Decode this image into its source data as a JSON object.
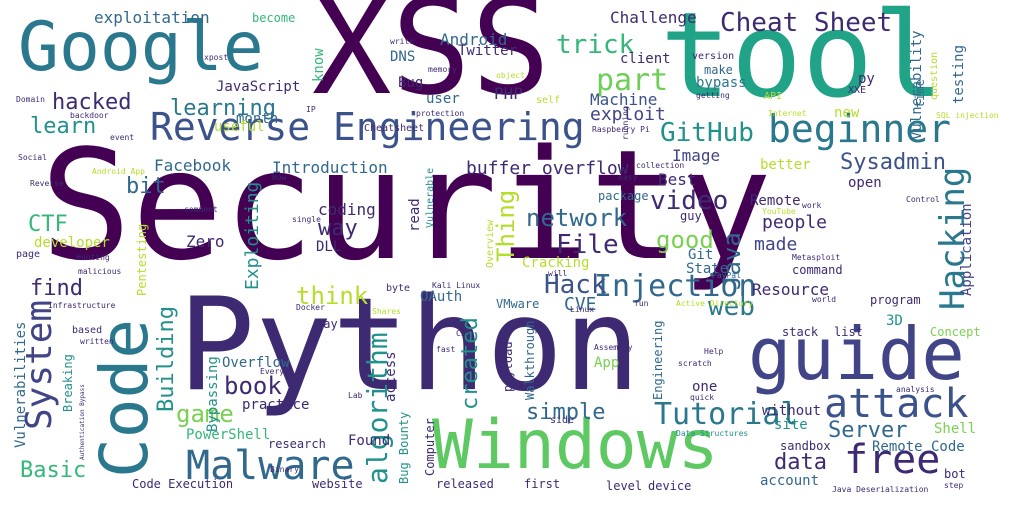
{
  "words": [
    {
      "text": "Security",
      "color": "#440154"
    },
    {
      "text": "Python",
      "color": "#3e2a72"
    },
    {
      "text": "XSS",
      "color": "#440154"
    },
    {
      "text": "tool",
      "color": "#20a386"
    },
    {
      "text": "Google",
      "color": "#2a788e"
    },
    {
      "text": "Windows",
      "color": "#5ec962"
    },
    {
      "text": "guide",
      "color": "#414487"
    },
    {
      "text": "Code",
      "color": "#2a788e"
    },
    {
      "text": "Reverse Engineering",
      "color": "#3b528b"
    },
    {
      "text": "beginner",
      "color": "#2a788e"
    },
    {
      "text": "attack",
      "color": "#3b528b"
    },
    {
      "text": "Malware",
      "color": "#31688e"
    },
    {
      "text": "free",
      "color": "#3e2a72"
    },
    {
      "text": "Hacking",
      "color": "#2a788e"
    },
    {
      "text": "System",
      "color": "#414487"
    },
    {
      "text": "Injection",
      "color": "#31688e"
    },
    {
      "text": "Tutorial",
      "color": "#2a788e"
    },
    {
      "text": "algorithm",
      "color": "#21918c"
    },
    {
      "text": "Cheat Sheet",
      "color": "#3e2a72"
    },
    {
      "text": "GitHub",
      "color": "#21918c"
    },
    {
      "text": "trick",
      "color": "#35b779"
    },
    {
      "text": "part",
      "color": "#6ece58"
    },
    {
      "text": "hacked",
      "color": "#3e2a72"
    },
    {
      "text": "learning",
      "color": "#2a788e"
    },
    {
      "text": "learn",
      "color": "#21918c"
    },
    {
      "text": "web",
      "color": "#2a788e"
    },
    {
      "text": "video",
      "color": "#3e2a72"
    },
    {
      "text": "network",
      "color": "#31688e"
    },
    {
      "text": "File",
      "color": "#3e2a72"
    },
    {
      "text": "Hack",
      "color": "#3b528b"
    },
    {
      "text": "good",
      "color": "#7ad151"
    },
    {
      "text": "Java",
      "color": "#31688e"
    },
    {
      "text": "think",
      "color": "#b5de2b"
    },
    {
      "text": "Thing",
      "color": "#b5de2b"
    },
    {
      "text": "created",
      "color": "#21918c"
    },
    {
      "text": "Building",
      "color": "#21918c"
    },
    {
      "text": "book",
      "color": "#3e2a72"
    },
    {
      "text": "game",
      "color": "#7ad151"
    },
    {
      "text": "Server",
      "color": "#31688e"
    },
    {
      "text": "simple",
      "color": "#31688e"
    },
    {
      "text": "data",
      "color": "#3e2a72"
    },
    {
      "text": "Basic",
      "color": "#35b779"
    },
    {
      "text": "CTF",
      "color": "#35b779"
    },
    {
      "text": "bit",
      "color": "#31688e"
    },
    {
      "text": "way",
      "color": "#3e2a72"
    },
    {
      "text": "find",
      "color": "#3e2a72"
    },
    {
      "text": "CVE",
      "color": "#31688e"
    },
    {
      "text": "Sysadmin",
      "color": "#3b528b"
    },
    {
      "text": "exploit",
      "color": "#414487"
    },
    {
      "text": "Machine",
      "color": "#3b528b"
    },
    {
      "text": "buffer overflow",
      "color": "#3e2a72"
    },
    {
      "text": "Introduction",
      "color": "#31688e"
    },
    {
      "text": "Facebook",
      "color": "#31688e"
    },
    {
      "text": "Image",
      "color": "#414487"
    },
    {
      "text": "Best",
      "color": "#3e2a72"
    },
    {
      "text": "Challenge",
      "color": "#3e2a72"
    },
    {
      "text": "Android",
      "color": "#31688e"
    },
    {
      "text": "exploitation",
      "color": "#31688e"
    },
    {
      "text": "Exploiting",
      "color": "#21918c"
    },
    {
      "text": "coding",
      "color": "#3e2a72"
    },
    {
      "text": "Zero",
      "color": "#3e2a72"
    },
    {
      "text": "made",
      "color": "#414487"
    },
    {
      "text": "people",
      "color": "#3e2a72"
    },
    {
      "text": "Remote",
      "color": "#3e2a72"
    },
    {
      "text": "Resource",
      "color": "#3e2a72"
    },
    {
      "text": "Git",
      "color": "#31688e"
    },
    {
      "text": "State",
      "color": "#31688e"
    },
    {
      "text": "Application",
      "color": "#414487"
    },
    {
      "text": "Vulnerability",
      "color": "#31688e"
    },
    {
      "text": "testing",
      "color": "#31688e"
    },
    {
      "text": "JavaScript",
      "color": "#3e2a72"
    },
    {
      "text": "Bug",
      "color": "#3e2a72"
    },
    {
      "text": "PHP",
      "color": "#3e2a72"
    },
    {
      "text": "user",
      "color": "#31688e"
    },
    {
      "text": "client",
      "color": "#3e2a72"
    },
    {
      "text": "bypass",
      "color": "#2a788e"
    },
    {
      "text": "make",
      "color": "#31688e"
    },
    {
      "text": "py",
      "color": "#3e2a72"
    },
    {
      "text": "know",
      "color": "#35b779"
    },
    {
      "text": "DNS",
      "color": "#31688e"
    },
    {
      "text": "Twitter",
      "color": "#3e2a72"
    },
    {
      "text": "become",
      "color": "#35b779"
    },
    {
      "text": "month",
      "color": "#31688e"
    },
    {
      "text": "useful",
      "color": "#b5de2b"
    },
    {
      "text": "Vulnerabilities",
      "color": "#31688e"
    },
    {
      "text": "Bypassing",
      "color": "#21918c"
    },
    {
      "text": "Overflow",
      "color": "#31688e"
    },
    {
      "text": "practice",
      "color": "#3e2a72"
    },
    {
      "text": "PowerShell",
      "color": "#35b779"
    },
    {
      "text": "Found",
      "color": "#3e2a72"
    },
    {
      "text": "Code Execution",
      "color": "#3e2a72"
    },
    {
      "text": "website",
      "color": "#3e2a72"
    },
    {
      "text": "access",
      "color": "#3e2a72"
    },
    {
      "text": "payload",
      "color": "#3e2a72"
    },
    {
      "text": "Walkthrough",
      "color": "#31688e"
    },
    {
      "text": "App",
      "color": "#7ad151"
    },
    {
      "text": "one",
      "color": "#3e2a72"
    },
    {
      "text": "without",
      "color": "#3e2a72"
    },
    {
      "text": "site",
      "color": "#21918c"
    },
    {
      "text": "sandbox",
      "color": "#3e2a72"
    },
    {
      "text": "Shell",
      "color": "#7ad151"
    },
    {
      "text": "Remote Code",
      "color": "#31688e"
    },
    {
      "text": "released",
      "color": "#3e2a72"
    },
    {
      "text": "first",
      "color": "#3e2a72"
    },
    {
      "text": "level",
      "color": "#3e2a72"
    },
    {
      "text": "device",
      "color": "#3e2a72"
    },
    {
      "text": "account",
      "color": "#31688e"
    },
    {
      "text": "bot",
      "color": "#3e2a72"
    },
    {
      "text": "3D",
      "color": "#21918c"
    },
    {
      "text": "Concept",
      "color": "#7ad151"
    },
    {
      "text": "stack",
      "color": "#3e2a72"
    },
    {
      "text": "list",
      "color": "#3e2a72"
    },
    {
      "text": "program",
      "color": "#3e2a72"
    },
    {
      "text": "OAuth",
      "color": "#31688e"
    },
    {
      "text": "Day",
      "color": "#3e2a72"
    },
    {
      "text": "VMware",
      "color": "#31688e"
    },
    {
      "text": "Cracking",
      "color": "#b5de2b"
    },
    {
      "text": "DLL",
      "color": "#3e2a72"
    },
    {
      "text": "developer",
      "color": "#b5de2b"
    },
    {
      "text": "Pentesting",
      "color": "#b5de2b"
    },
    {
      "text": "Breaking",
      "color": "#21918c"
    },
    {
      "text": "Computer",
      "color": "#3e2a72"
    },
    {
      "text": "Engineering",
      "color": "#31688e"
    },
    {
      "text": "Bug Bounty",
      "color": "#21918c"
    },
    {
      "text": "research",
      "color": "#3e2a72"
    },
    {
      "text": "open",
      "color": "#3e2a72"
    },
    {
      "text": "better",
      "color": "#b5de2b"
    },
    {
      "text": "new",
      "color": "#b5de2b"
    },
    {
      "text": "command",
      "color": "#3e2a72"
    },
    {
      "text": "read",
      "color": "#3e2a72"
    },
    {
      "text": "guy",
      "color": "#3e2a72"
    },
    {
      "text": "package",
      "color": "#31688e"
    },
    {
      "text": "Overview",
      "color": "#b5de2b"
    },
    {
      "text": "Vulnerable",
      "color": "#21918c"
    },
    {
      "text": "Cheatsheet",
      "color": "#3e2a72"
    },
    {
      "text": "version",
      "color": "#3e2a72"
    },
    {
      "text": "getting",
      "color": "#3e2a72"
    },
    {
      "text": "question",
      "color": "#b5de2b"
    },
    {
      "text": "time",
      "color": "#31688e"
    },
    {
      "text": "XXE",
      "color": "#3e2a72"
    },
    {
      "text": "API",
      "color": "#b5de2b"
    },
    {
      "text": "SQL injection",
      "color": "#b5de2b"
    },
    {
      "text": "Internet",
      "color": "#b5de2b"
    },
    {
      "text": "work",
      "color": "#3e2a72"
    },
    {
      "text": "Control",
      "color": "#3e2a72"
    },
    {
      "text": "Metasploit",
      "color": "#3e2a72"
    },
    {
      "text": "YouTube",
      "color": "#b5de2b"
    },
    {
      "text": "world",
      "color": "#3e2a72"
    },
    {
      "text": "Active Directory",
      "color": "#b5de2b"
    },
    {
      "text": "PayPal",
      "color": "#31688e"
    },
    {
      "text": "fun",
      "color": "#3e2a72"
    },
    {
      "text": "Linux",
      "color": "#3e2a72"
    },
    {
      "text": "will",
      "color": "#3e2a72"
    },
    {
      "text": "Kali Linux",
      "color": "#3e2a72"
    },
    {
      "text": "byte",
      "color": "#3e2a72"
    },
    {
      "text": "Assembly",
      "color": "#3e2a72"
    },
    {
      "text": "scratch",
      "color": "#3e2a72"
    },
    {
      "text": "Help",
      "color": "#3e2a72"
    },
    {
      "text": "Every",
      "color": "#3e2a72"
    },
    {
      "text": "analysis",
      "color": "#3e2a72"
    },
    {
      "text": "quick",
      "color": "#3e2a72"
    },
    {
      "text": "Data Structures",
      "color": "#21918c"
    },
    {
      "text": "Java Deserialization",
      "color": "#3e2a72"
    },
    {
      "text": "step",
      "color": "#3e2a72"
    },
    {
      "text": "side",
      "color": "#3e2a72"
    },
    {
      "text": "Binary",
      "color": "#3e2a72"
    },
    {
      "text": "CSS",
      "color": "#3e2a72"
    },
    {
      "text": "Docker",
      "color": "#3e2a72"
    },
    {
      "text": "Shares",
      "color": "#b5de2b"
    },
    {
      "text": "fast",
      "color": "#3e2a72"
    },
    {
      "text": "Lab",
      "color": "#3e2a72"
    },
    {
      "text": "Authentication Bypass",
      "color": "#3e2a72"
    },
    {
      "text": "written",
      "color": "#3e2a72"
    },
    {
      "text": "based",
      "color": "#3e2a72"
    },
    {
      "text": "Infrastructure",
      "color": "#3e2a72"
    },
    {
      "text": "malicious",
      "color": "#3e2a72"
    },
    {
      "text": "Hunting",
      "color": "#3e2a72"
    },
    {
      "text": "page",
      "color": "#3e2a72"
    },
    {
      "text": "Reverse",
      "color": "#3e2a72"
    },
    {
      "text": "Android App",
      "color": "#b5de2b"
    },
    {
      "text": "Social",
      "color": "#3e2a72"
    },
    {
      "text": "comment",
      "color": "#3e2a72"
    },
    {
      "text": "single",
      "color": "#3e2a72"
    },
    {
      "text": "Domain",
      "color": "#3e2a72"
    },
    {
      "text": "backdoor",
      "color": "#3e2a72"
    },
    {
      "text": "event",
      "color": "#3e2a72"
    },
    {
      "text": "xpost",
      "color": "#3e2a72"
    },
    {
      "text": "write",
      "color": "#3e2a72"
    },
    {
      "text": "memory",
      "color": "#3e2a72"
    },
    {
      "text": "object",
      "color": "#b5de2b"
    },
    {
      "text": "self",
      "color": "#b5de2b"
    },
    {
      "text": "protection",
      "color": "#3e2a72"
    },
    {
      "text": "Raspberry Pi",
      "color": "#3e2a72"
    },
    {
      "text": "running",
      "color": "#3e2a72"
    },
    {
      "text": "collection",
      "color": "#3e2a72"
    },
    {
      "text": "easy",
      "color": "#3e2a72"
    },
    {
      "text": "IP",
      "color": "#3e2a72"
    },
    {
      "text": "How",
      "color": "#3e2a72"
    }
  ]
}
